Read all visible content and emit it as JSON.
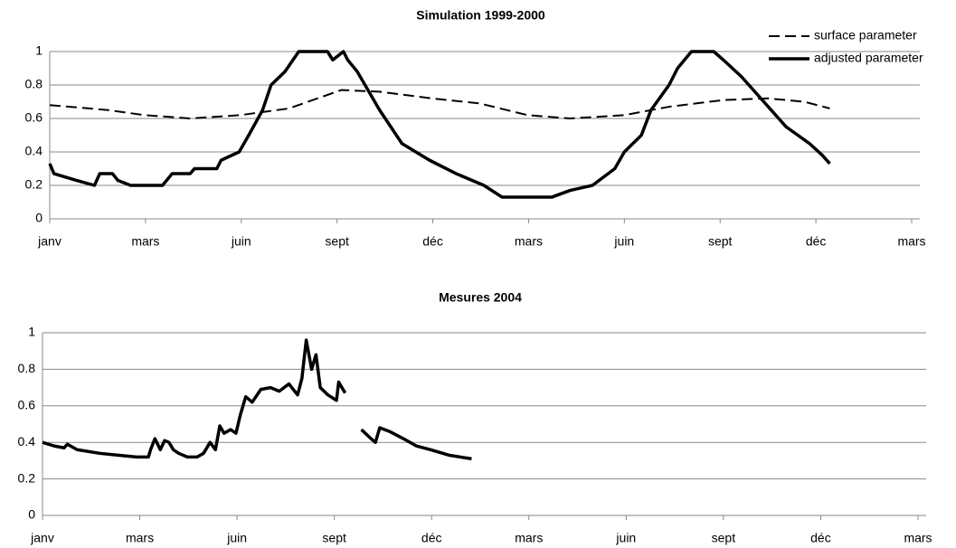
{
  "chart_data": [
    {
      "type": "line",
      "title": "Simulation 1999-2000",
      "xlim": [
        0,
        810
      ],
      "xticks": [
        {
          "value": 0,
          "label": "janv"
        },
        {
          "value": 90,
          "label": "mars"
        },
        {
          "value": 180,
          "label": "juin"
        },
        {
          "value": 270,
          "label": "sept"
        },
        {
          "value": 360,
          "label": "déc"
        },
        {
          "value": 450,
          "label": "mars"
        },
        {
          "value": 540,
          "label": "juin"
        },
        {
          "value": 630,
          "label": "sept"
        },
        {
          "value": 720,
          "label": "déc"
        },
        {
          "value": 810,
          "label": "mars"
        }
      ],
      "ylim": [
        0,
        1
      ],
      "yticks": [
        0,
        0.2,
        0.4,
        0.6,
        0.8,
        1
      ],
      "grid": true,
      "legend": "upper right",
      "series": [
        {
          "name": "surface parameter",
          "color": "#000000",
          "dashed": true,
          "x": [
            0,
            55,
            89,
            132,
            179,
            225,
            274,
            310,
            359,
            404,
            449,
            489,
            540,
            582,
            633,
            675,
            709,
            733
          ],
          "values": [
            0.68,
            0.65,
            0.62,
            0.6,
            0.62,
            0.66,
            0.77,
            0.76,
            0.72,
            0.69,
            0.62,
            0.6,
            0.62,
            0.67,
            0.71,
            0.72,
            0.7,
            0.66
          ]
        },
        {
          "name": "adjusted parameter",
          "color": "#000000",
          "dashed": false,
          "x": [
            0,
            4,
            25,
            42,
            47,
            59,
            64,
            76,
            106,
            115,
            132,
            136,
            157,
            161,
            178,
            187,
            200,
            208,
            221,
            234,
            261,
            266,
            276,
            280,
            289,
            310,
            331,
            357,
            382,
            408,
            425,
            472,
            489,
            510,
            531,
            540,
            556,
            565,
            582,
            590,
            603,
            624,
            633,
            650,
            671,
            692,
            714,
            726,
            733
          ],
          "values": [
            0.33,
            0.27,
            0.23,
            0.2,
            0.27,
            0.27,
            0.23,
            0.2,
            0.2,
            0.27,
            0.27,
            0.3,
            0.3,
            0.35,
            0.4,
            0.5,
            0.65,
            0.8,
            0.88,
            1,
            1,
            0.95,
            1,
            0.95,
            0.88,
            0.65,
            0.45,
            0.35,
            0.27,
            0.2,
            0.13,
            0.13,
            0.17,
            0.2,
            0.3,
            0.4,
            0.5,
            0.65,
            0.8,
            0.9,
            1,
            1,
            0.95,
            0.85,
            0.7,
            0.55,
            0.45,
            0.38,
            0.33
          ]
        }
      ]
    },
    {
      "type": "line",
      "title": "Mesures 2004",
      "xlim": [
        0,
        810
      ],
      "xticks": [
        {
          "value": 0,
          "label": "janv"
        },
        {
          "value": 90,
          "label": "mars"
        },
        {
          "value": 180,
          "label": "juin"
        },
        {
          "value": 270,
          "label": "sept"
        },
        {
          "value": 360,
          "label": "déc"
        },
        {
          "value": 450,
          "label": "mars"
        },
        {
          "value": 540,
          "label": "juin"
        },
        {
          "value": 630,
          "label": "sept"
        },
        {
          "value": 720,
          "label": "déc"
        },
        {
          "value": 810,
          "label": "mars"
        }
      ],
      "ylim": [
        0,
        1
      ],
      "yticks": [
        0,
        0.2,
        0.4,
        0.6,
        0.8,
        1
      ],
      "grid": true,
      "color": "#000000",
      "x": [
        0,
        11,
        20,
        23,
        32,
        53,
        70,
        87,
        98,
        100,
        104,
        109,
        113,
        117,
        121,
        126,
        134,
        143,
        149,
        155,
        160,
        164,
        168,
        174,
        179,
        183,
        188,
        194,
        202,
        211,
        219,
        228,
        236,
        240,
        244,
        249,
        253,
        257,
        264,
        272,
        274,
        280,
        288,
        295,
        304,
        308,
        312,
        321,
        334,
        346,
        359,
        376,
        397
      ],
      "values": [
        0.4,
        0.38,
        0.37,
        0.39,
        0.36,
        0.34,
        0.33,
        0.32,
        0.32,
        0.36,
        0.42,
        0.36,
        0.41,
        0.4,
        0.36,
        0.34,
        0.32,
        0.32,
        0.34,
        0.4,
        0.36,
        0.49,
        0.45,
        0.47,
        0.45,
        0.55,
        0.65,
        0.62,
        0.69,
        0.7,
        0.68,
        0.72,
        0.66,
        0.75,
        0.96,
        0.8,
        0.88,
        0.7,
        0.66,
        0.63,
        0.73,
        0.67,
        null,
        0.47,
        0.42,
        0.4,
        0.48,
        0.46,
        0.42,
        0.38,
        0.36,
        0.33,
        0.31
      ]
    }
  ]
}
